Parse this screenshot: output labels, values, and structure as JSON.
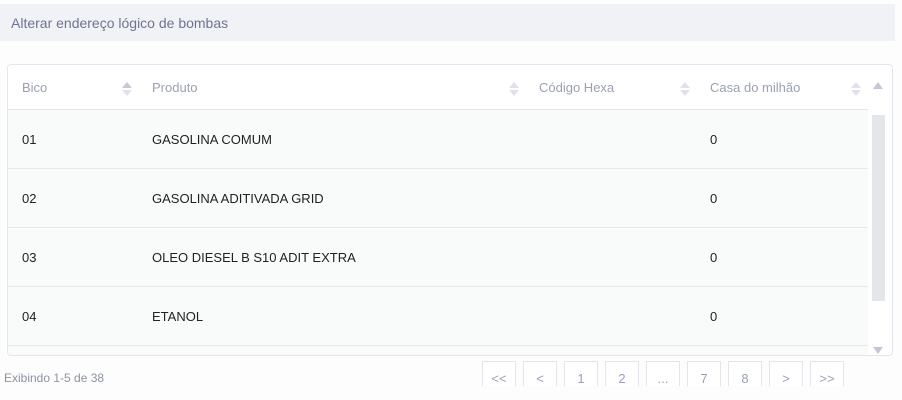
{
  "header": {
    "title": "Alterar endereço lógico de bombas"
  },
  "table": {
    "columns": [
      "Bico",
      "Produto",
      "Código Hexa",
      "Casa do milhão"
    ],
    "rows": [
      {
        "bico": "01",
        "produto": "GASOLINA COMUM",
        "codigo_hexa": "",
        "casa_milhao": "0"
      },
      {
        "bico": "02",
        "produto": "GASOLINA ADITIVADA GRID",
        "codigo_hexa": "",
        "casa_milhao": "0"
      },
      {
        "bico": "03",
        "produto": "OLEO DIESEL B S10 ADIT EXTRA",
        "codigo_hexa": "",
        "casa_milhao": "0"
      },
      {
        "bico": "04",
        "produto": "ETANOL",
        "codigo_hexa": "",
        "casa_milhao": "0"
      }
    ]
  },
  "footer": {
    "status": "Exibindo 1-5 de 38",
    "pagination": [
      "<<",
      "<",
      "1",
      "2",
      "...",
      "7",
      "8",
      ">",
      ">>"
    ]
  }
}
